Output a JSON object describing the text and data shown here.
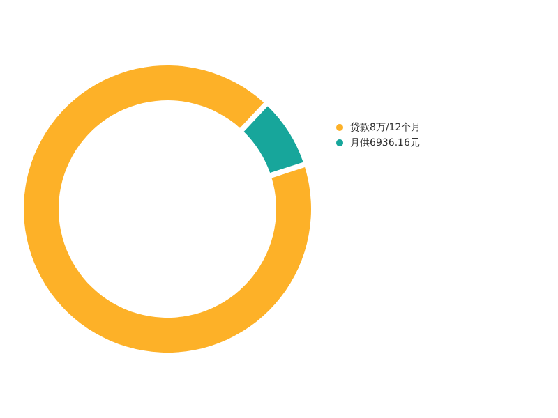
{
  "chart_data": {
    "type": "donut",
    "categories": [
      "贷款8万/12个月",
      "月供6936.16元"
    ],
    "values": [
      92,
      8
    ],
    "colors": [
      "#fdb128",
      "#17a69b"
    ],
    "legend": "right"
  }
}
